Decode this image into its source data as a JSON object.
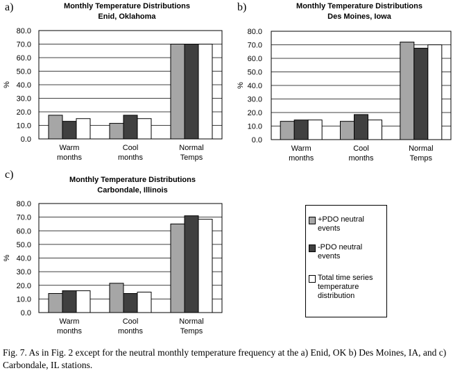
{
  "colors": {
    "plus": "#a6a6a6",
    "minus": "#404040",
    "total": "#ffffff"
  },
  "legend": [
    {
      "label": "+PDO neutral events",
      "color": "#a6a6a6"
    },
    {
      "label": "-PDO neutral events",
      "color": "#404040"
    },
    {
      "label": "Total time series temperature distribution",
      "color": "#ffffff"
    }
  ],
  "caption": "Fig. 7. As in Fig. 2 except for the neutral monthly temperature frequency at the a) Enid, OK b) Des Moines, IA, and c) Carbondale, IL stations.",
  "chart_data": [
    {
      "type": "bar",
      "panel": "a)",
      "title": "Monthly Temperature Distributions",
      "subtitle": "Enid, Oklahoma",
      "ylabel": "%",
      "xlabel": "",
      "categories": [
        [
          "Warm",
          "months"
        ],
        [
          "Cool",
          "months"
        ],
        [
          "Normal",
          "Temps"
        ]
      ],
      "ylim": [
        0,
        80
      ],
      "yticks": [
        "0.0",
        "10.0",
        "20.0",
        "30.0",
        "40.0",
        "50.0",
        "60.0",
        "70.0",
        "80.0"
      ],
      "series": [
        {
          "name": "+PDO neutral events",
          "values": [
            17.5,
            11.5,
            70
          ]
        },
        {
          "name": "-PDO neutral events",
          "values": [
            13,
            17.5,
            70
          ]
        },
        {
          "name": "Total time series temperature distribution",
          "values": [
            15,
            15,
            70
          ]
        }
      ]
    },
    {
      "type": "bar",
      "panel": "b)",
      "title": "Monthly Temperature Distributions",
      "subtitle": "Des Moines, Iowa",
      "ylabel": "%",
      "xlabel": "",
      "categories": [
        [
          "Warm",
          "months"
        ],
        [
          "Cool",
          "months"
        ],
        [
          "Normal",
          "Temps"
        ]
      ],
      "ylim": [
        0,
        80
      ],
      "yticks": [
        "0.0",
        "10.0",
        "20.0",
        "30.0",
        "40.0",
        "50.0",
        "60.0",
        "70.0",
        "80.0"
      ],
      "series": [
        {
          "name": "+PDO neutral events",
          "values": [
            13.5,
            13.5,
            72
          ]
        },
        {
          "name": "-PDO neutral events",
          "values": [
            14.5,
            18.5,
            67.5
          ]
        },
        {
          "name": "Total time series temperature distribution",
          "values": [
            14.5,
            14.5,
            70
          ]
        }
      ]
    },
    {
      "type": "bar",
      "panel": "c)",
      "title": "Monthly Temperature Distributions",
      "subtitle": "Carbondale, Illinois",
      "ylabel": "%",
      "xlabel": "",
      "categories": [
        [
          "Warm",
          "months"
        ],
        [
          "Cool",
          "months"
        ],
        [
          "Normal",
          "Temps"
        ]
      ],
      "ylim": [
        0,
        80
      ],
      "yticks": [
        "0.0",
        "10.0",
        "20.0",
        "30.0",
        "40.0",
        "50.0",
        "60.0",
        "70.0",
        "80.0"
      ],
      "series": [
        {
          "name": "+PDO neutral events",
          "values": [
            14,
            21.5,
            65
          ]
        },
        {
          "name": "-PDO neutral events",
          "values": [
            16,
            14,
            71
          ]
        },
        {
          "name": "Total time series temperature distribution",
          "values": [
            16,
            15,
            68.5
          ]
        }
      ]
    }
  ]
}
